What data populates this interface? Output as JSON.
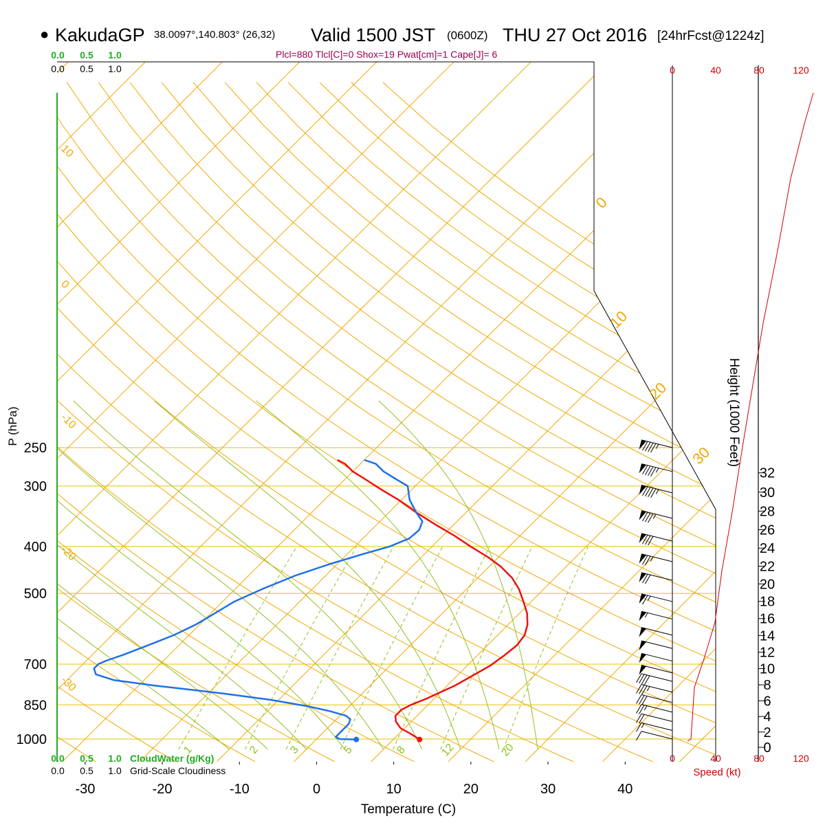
{
  "header": {
    "station_dot": "●",
    "station": "KakudaGP",
    "coords": "38.0097°,140.803° (26,32)",
    "valid": "Valid 1500 JST",
    "utc": "(0600Z)",
    "date": "THU 27 Oct 2016",
    "forecast": "[24hrFcst@1224z]",
    "indices": "Plcl=880 Tlcl[C]=0 Shox=19 Pwat[cm]=1 Cape[J]= 6"
  },
  "colors": {
    "isobar": "#e8c000",
    "skewT": "#f0a800",
    "dryAdiabat": "#f0a800",
    "moistAdiabat": "#90c020",
    "mixingRatio": "#90c020",
    "temperature": "#ee1111",
    "dewpoint": "#1f6fe8",
    "wind": "#000000",
    "speed": "#cc0000",
    "cloud": "#22aa22",
    "indices": "#990055"
  },
  "chart_data": {
    "type": "line",
    "xlabel": "Temperature (C)",
    "ylabel": "P (hPa)",
    "y2label": "Height (1000 Feet)",
    "speed_label": "Speed (kt)",
    "xticks": [
      "-30",
      "-20",
      "-10",
      "0",
      "10",
      "20",
      "30",
      "40"
    ],
    "pressure_levels": [
      250,
      300,
      400,
      500,
      700,
      850,
      1000
    ],
    "height_ticks": [
      "0",
      "2",
      "4",
      "6",
      "8",
      "10",
      "12",
      "14",
      "16",
      "18",
      "20",
      "22",
      "24",
      "26",
      "28",
      "30",
      "32"
    ],
    "speed_ticks": [
      "0",
      "40",
      "80",
      "120"
    ],
    "cloud_scale": [
      "0.0",
      "0.5",
      "1.0"
    ],
    "cloud_water_label": "CloudWater (g/Kg)",
    "cloudiness_label": "Grid-Scale Cloudiness",
    "skew_labels": [
      "10",
      "0",
      "-10",
      "-20",
      "-30"
    ],
    "mixing_ratio_labels": [
      "1",
      "2",
      "3",
      "5",
      "8",
      "12",
      "20"
    ],
    "moist_labels": [
      "0",
      "10",
      "20",
      "30"
    ],
    "series": [
      {
        "role": "temperature",
        "points": [
          [
            13.4,
            1002
          ],
          [
            11.5,
            975
          ],
          [
            9.5,
            950
          ],
          [
            8.0,
            920
          ],
          [
            7.2,
            895
          ],
          [
            7.2,
            870
          ],
          [
            7.8,
            850
          ],
          [
            9.0,
            825
          ],
          [
            10.0,
            800
          ],
          [
            11.0,
            775
          ],
          [
            12.0,
            740
          ],
          [
            13.0,
            705
          ],
          [
            13.5,
            670
          ],
          [
            13.8,
            640
          ],
          [
            13.5,
            610
          ],
          [
            12.5,
            580
          ],
          [
            11.0,
            550
          ],
          [
            9.0,
            520
          ],
          [
            6.8,
            490
          ],
          [
            4.5,
            465
          ],
          [
            1.5,
            440
          ],
          [
            -1.5,
            420
          ],
          [
            -5.0,
            400
          ],
          [
            -8.5,
            380
          ],
          [
            -12.5,
            360
          ],
          [
            -16.5,
            340
          ],
          [
            -20.5,
            320
          ],
          [
            -24.0,
            305
          ],
          [
            -27.5,
            290
          ],
          [
            -30.0,
            280
          ],
          [
            -32.0,
            270
          ],
          [
            -33.5,
            265
          ]
        ]
      },
      {
        "role": "dewpoint",
        "points": [
          [
            5.2,
            1002
          ],
          [
            3.0,
            1000
          ],
          [
            2.2,
            990
          ],
          [
            2.2,
            960
          ],
          [
            2.2,
            930
          ],
          [
            1.8,
            910
          ],
          [
            0.8,
            895
          ],
          [
            -2.0,
            875
          ],
          [
            -5.5,
            855
          ],
          [
            -11.0,
            830
          ],
          [
            -18.0,
            805
          ],
          [
            -28.0,
            775
          ],
          [
            -34.0,
            755
          ],
          [
            -37.0,
            735
          ],
          [
            -38.0,
            715
          ],
          [
            -38.0,
            700
          ],
          [
            -37.5,
            690
          ],
          [
            -36.0,
            670
          ],
          [
            -34.0,
            640
          ],
          [
            -32.0,
            610
          ],
          [
            -30.5,
            580
          ],
          [
            -29.5,
            550
          ],
          [
            -28.5,
            520
          ],
          [
            -26.5,
            490
          ],
          [
            -24.0,
            460
          ],
          [
            -21.0,
            435
          ],
          [
            -18.0,
            415
          ],
          [
            -15.5,
            400
          ],
          [
            -14.0,
            385
          ],
          [
            -13.8,
            370
          ],
          [
            -14.5,
            355
          ],
          [
            -16.5,
            340
          ],
          [
            -19.0,
            320
          ],
          [
            -21.0,
            300
          ],
          [
            -23.5,
            290
          ],
          [
            -26.0,
            280
          ],
          [
            -28.0,
            270
          ],
          [
            -30.0,
            265
          ]
        ]
      }
    ],
    "wind": [
      {
        "p": 250,
        "dir": 280,
        "spd": 95
      },
      {
        "p": 280,
        "dir": 280,
        "spd": 95
      },
      {
        "p": 310,
        "dir": 280,
        "spd": 95
      },
      {
        "p": 350,
        "dir": 280,
        "spd": 85
      },
      {
        "p": 390,
        "dir": 280,
        "spd": 80
      },
      {
        "p": 430,
        "dir": 280,
        "spd": 75
      },
      {
        "p": 470,
        "dir": 280,
        "spd": 70
      },
      {
        "p": 520,
        "dir": 285,
        "spd": 65
      },
      {
        "p": 565,
        "dir": 290,
        "spd": 55
      },
      {
        "p": 610,
        "dir": 300,
        "spd": 50
      },
      {
        "p": 650,
        "dir": 300,
        "spd": 50
      },
      {
        "p": 690,
        "dir": 300,
        "spd": 50
      },
      {
        "p": 730,
        "dir": 300,
        "spd": 50
      },
      {
        "p": 760,
        "dir": 300,
        "spd": 40
      },
      {
        "p": 800,
        "dir": 300,
        "spd": 35
      },
      {
        "p": 840,
        "dir": 300,
        "spd": 30
      },
      {
        "p": 880,
        "dir": 300,
        "spd": 25
      },
      {
        "p": 920,
        "dir": 300,
        "spd": 20
      },
      {
        "p": 960,
        "dir": 300,
        "spd": 15
      },
      {
        "p": 1000,
        "dir": 300,
        "spd": 10
      }
    ]
  }
}
